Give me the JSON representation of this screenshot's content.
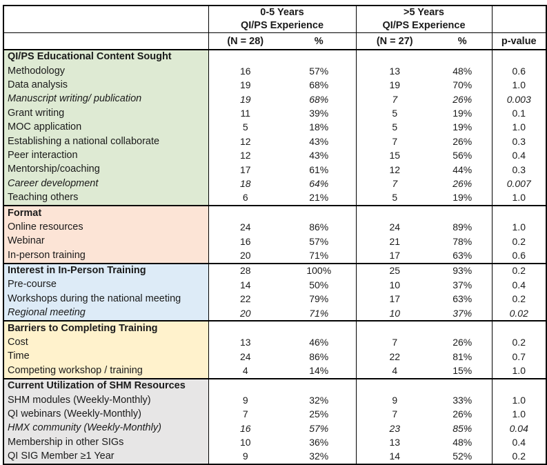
{
  "table": {
    "header": {
      "corner": "",
      "groups": [
        {
          "line1": "0-5 Years",
          "line2": "QI/PS Experience"
        },
        {
          "line1": ">5 Years",
          "line2": "QI/PS Experience"
        }
      ],
      "subheaders": {
        "n1": "(N = 28)",
        "pct1": "%",
        "n2": "(N = 27)",
        "pct2": "%",
        "pvalue": "p-value"
      }
    },
    "colors": {
      "section_educational": "#DEEAD3",
      "section_format": "#FCE4D6",
      "section_interest": "#DDEBF7",
      "section_barriers": "#FFF2CC",
      "section_utilization": "#E7E6E6",
      "border": "#000000"
    },
    "sections": [
      {
        "title": "QI/PS Educational Content Sought",
        "color": "#DEEAD3",
        "title_data": null,
        "rows": [
          {
            "label": "Methodology",
            "n1": "16",
            "p1": "57%",
            "n2": "13",
            "p2": "48%",
            "pv": "0.6",
            "italic": false
          },
          {
            "label": "Data analysis",
            "n1": "19",
            "p1": "68%",
            "n2": "19",
            "p2": "70%",
            "pv": "1.0",
            "italic": false
          },
          {
            "label": "Manuscript writing/ publication",
            "n1": "19",
            "p1": "68%",
            "n2": "7",
            "p2": "26%",
            "pv": "0.003",
            "italic": true
          },
          {
            "label": "Grant writing",
            "n1": "11",
            "p1": "39%",
            "n2": "5",
            "p2": "19%",
            "pv": "0.1",
            "italic": false
          },
          {
            "label": "MOC application",
            "n1": "5",
            "p1": "18%",
            "n2": "5",
            "p2": "19%",
            "pv": "1.0",
            "italic": false
          },
          {
            "label": "Establishing a national collaborate",
            "n1": "12",
            "p1": "43%",
            "n2": "7",
            "p2": "26%",
            "pv": "0.3",
            "italic": false
          },
          {
            "label": "Peer interaction",
            "n1": "12",
            "p1": "43%",
            "n2": "15",
            "p2": "56%",
            "pv": "0.4",
            "italic": false
          },
          {
            "label": "Mentorship/coaching",
            "n1": "17",
            "p1": "61%",
            "n2": "12",
            "p2": "44%",
            "pv": "0.3",
            "italic": false
          },
          {
            "label": "Career development",
            "n1": "18",
            "p1": "64%",
            "n2": "7",
            "p2": "26%",
            "pv": "0.007",
            "italic": true
          },
          {
            "label": "Teaching others",
            "n1": "6",
            "p1": "21%",
            "n2": "5",
            "p2": "19%",
            "pv": "1.0",
            "italic": false
          }
        ]
      },
      {
        "title": "Format",
        "color": "#FCE4D6",
        "title_data": null,
        "rows": [
          {
            "label": "Online resources",
            "n1": "24",
            "p1": "86%",
            "n2": "24",
            "p2": "89%",
            "pv": "1.0",
            "italic": false
          },
          {
            "label": "Webinar",
            "n1": "16",
            "p1": "57%",
            "n2": "21",
            "p2": "78%",
            "pv": "0.2",
            "italic": false
          },
          {
            "label": "In-person training",
            "n1": "20",
            "p1": "71%",
            "n2": "17",
            "p2": "63%",
            "pv": "0.6",
            "italic": false
          }
        ]
      },
      {
        "title": "Interest in In-Person Training",
        "color": "#DDEBF7",
        "title_data": {
          "n1": "28",
          "p1": "100%",
          "n2": "25",
          "p2": "93%",
          "pv": "0.2"
        },
        "rows": [
          {
            "label": "Pre-course",
            "n1": "14",
            "p1": "50%",
            "n2": "10",
            "p2": "37%",
            "pv": "0.4",
            "italic": false
          },
          {
            "label": "Workshops during the national meeting",
            "n1": "22",
            "p1": "79%",
            "n2": "17",
            "p2": "63%",
            "pv": "0.2",
            "italic": false
          },
          {
            "label": "Regional meeting",
            "n1": "20",
            "p1": "71%",
            "n2": "10",
            "p2": "37%",
            "pv": "0.02",
            "italic": true
          }
        ]
      },
      {
        "title": "Barriers to Completing Training",
        "color": "#FFF2CC",
        "title_data": null,
        "rows": [
          {
            "label": "Cost",
            "n1": "13",
            "p1": "46%",
            "n2": "7",
            "p2": "26%",
            "pv": "0.2",
            "italic": false
          },
          {
            "label": "Time",
            "n1": "24",
            "p1": "86%",
            "n2": "22",
            "p2": "81%",
            "pv": "0.7",
            "italic": false
          },
          {
            "label": "Competing workshop / training",
            "n1": "4",
            "p1": "14%",
            "n2": "4",
            "p2": "15%",
            "pv": "1.0",
            "italic": false
          }
        ]
      },
      {
        "title": "Current Utilization of SHM Resources",
        "color": "#E7E6E6",
        "title_data": null,
        "rows": [
          {
            "label": "SHM modules (Weekly-Monthly)",
            "n1": "9",
            "p1": "32%",
            "n2": "9",
            "p2": "33%",
            "pv": "1.0",
            "italic": false
          },
          {
            "label": "QI webinars (Weekly-Monthly)",
            "n1": "7",
            "p1": "25%",
            "n2": "7",
            "p2": "26%",
            "pv": "1.0",
            "italic": false
          },
          {
            "label": "HMX community (Weekly-Monthly)",
            "n1": "16",
            "p1": "57%",
            "n2": "23",
            "p2": "85%",
            "pv": "0.04",
            "italic": true
          },
          {
            "label": "Membership in other SIGs",
            "n1": "10",
            "p1": "36%",
            "n2": "13",
            "p2": "48%",
            "pv": "0.4",
            "italic": false
          },
          {
            "label": "QI SIG Member ≥1 Year",
            "n1": "9",
            "p1": "32%",
            "n2": "14",
            "p2": "52%",
            "pv": "0.2",
            "italic": false
          }
        ]
      }
    ]
  }
}
